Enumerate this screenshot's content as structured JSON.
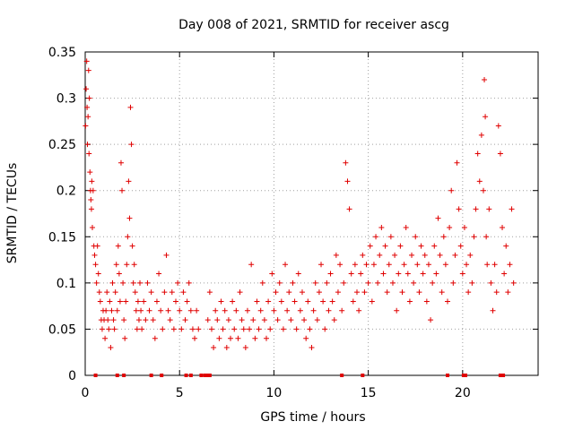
{
  "chart_data": {
    "type": "scatter",
    "title": "Day 008 of 2021, SRMTID for receiver ascg",
    "xlabel": "GPS time / hours",
    "ylabel": "SRMTID / TECUs",
    "xlim": [
      0,
      24
    ],
    "ylim": [
      0,
      0.35
    ],
    "xticks": [
      0,
      5,
      10,
      15,
      20
    ],
    "xtick_labels": [
      "0",
      "5",
      "10",
      "15",
      "20"
    ],
    "yticks": [
      0,
      0.05,
      0.1,
      0.15,
      0.2,
      0.25,
      0.3,
      0.35
    ],
    "ytick_labels": [
      "0",
      "0.05",
      "0.1",
      "0.15",
      "0.2",
      "0.25",
      "0.3",
      "0.35"
    ],
    "grid": true,
    "marker": "plus",
    "color": "#e00000",
    "series": [
      {
        "name": "SRMTID",
        "points": [
          [
            0.02,
            0.27
          ],
          [
            0.05,
            0.31
          ],
          [
            0.08,
            0.34
          ],
          [
            0.1,
            0.29
          ],
          [
            0.12,
            0.25
          ],
          [
            0.15,
            0.28
          ],
          [
            0.18,
            0.33
          ],
          [
            0.2,
            0.24
          ],
          [
            0.22,
            0.3
          ],
          [
            0.25,
            0.22
          ],
          [
            0.28,
            0.2
          ],
          [
            0.3,
            0.19
          ],
          [
            0.33,
            0.18
          ],
          [
            0.35,
            0.21
          ],
          [
            0.38,
            0.16
          ],
          [
            0.42,
            0.2
          ],
          [
            0.46,
            0.14
          ],
          [
            0.5,
            0.13
          ],
          [
            0.55,
            0.12
          ],
          [
            0.6,
            0.1
          ],
          [
            0.65,
            0.14
          ],
          [
            0.7,
            0.11
          ],
          [
            0.75,
            0.09
          ],
          [
            0.8,
            0.08
          ],
          [
            0.85,
            0.06
          ],
          [
            0.9,
            0.05
          ],
          [
            0.95,
            0.07
          ],
          [
            1.0,
            0.06
          ],
          [
            1.05,
            0.04
          ],
          [
            1.1,
            0.07
          ],
          [
            1.15,
            0.09
          ],
          [
            1.2,
            0.06
          ],
          [
            1.25,
            0.05
          ],
          [
            1.3,
            0.08
          ],
          [
            1.35,
            0.03
          ],
          [
            1.4,
            0.07
          ],
          [
            1.45,
            0.1
          ],
          [
            1.5,
            0.06
          ],
          [
            1.55,
            0.05
          ],
          [
            1.6,
            0.09
          ],
          [
            1.65,
            0.12
          ],
          [
            1.7,
            0.07
          ],
          [
            1.75,
            0.14
          ],
          [
            1.8,
            0.11
          ],
          [
            1.85,
            0.08
          ],
          [
            1.9,
            0.23
          ],
          [
            1.95,
            0.2
          ],
          [
            2.0,
            0.1
          ],
          [
            2.05,
            0.06
          ],
          [
            2.1,
            0.04
          ],
          [
            2.15,
            0.08
          ],
          [
            2.2,
            0.12
          ],
          [
            2.25,
            0.15
          ],
          [
            2.3,
            0.21
          ],
          [
            2.35,
            0.17
          ],
          [
            2.4,
            0.29
          ],
          [
            2.45,
            0.25
          ],
          [
            2.5,
            0.14
          ],
          [
            2.55,
            0.1
          ],
          [
            2.6,
            0.12
          ],
          [
            2.65,
            0.09
          ],
          [
            2.7,
            0.07
          ],
          [
            2.75,
            0.05
          ],
          [
            2.8,
            0.08
          ],
          [
            2.85,
            0.06
          ],
          [
            2.9,
            0.1
          ],
          [
            2.95,
            0.07
          ],
          [
            3.0,
            0.05
          ],
          [
            3.1,
            0.08
          ],
          [
            3.2,
            0.06
          ],
          [
            3.3,
            0.1
          ],
          [
            3.4,
            0.07
          ],
          [
            3.5,
            0.09
          ],
          [
            3.6,
            0.06
          ],
          [
            3.7,
            0.04
          ],
          [
            3.8,
            0.08
          ],
          [
            3.9,
            0.11
          ],
          [
            4.0,
            0.07
          ],
          [
            4.1,
            0.05
          ],
          [
            4.2,
            0.09
          ],
          [
            4.3,
            0.13
          ],
          [
            4.4,
            0.07
          ],
          [
            4.5,
            0.06
          ],
          [
            4.6,
            0.09
          ],
          [
            4.7,
            0.05
          ],
          [
            4.8,
            0.08
          ],
          [
            4.9,
            0.1
          ],
          [
            5.0,
            0.07
          ],
          [
            5.1,
            0.05
          ],
          [
            5.2,
            0.09
          ],
          [
            5.3,
            0.06
          ],
          [
            5.4,
            0.08
          ],
          [
            5.5,
            0.1
          ],
          [
            5.6,
            0.07
          ],
          [
            5.7,
            0.05
          ],
          [
            5.8,
            0.04
          ],
          [
            5.9,
            0.07
          ],
          [
            6.0,
            0.05
          ],
          [
            6.5,
            0.06
          ],
          [
            6.6,
            0.09
          ],
          [
            6.7,
            0.05
          ],
          [
            6.8,
            0.03
          ],
          [
            6.9,
            0.07
          ],
          [
            7.0,
            0.06
          ],
          [
            7.1,
            0.04
          ],
          [
            7.2,
            0.08
          ],
          [
            7.3,
            0.05
          ],
          [
            7.4,
            0.07
          ],
          [
            7.5,
            0.03
          ],
          [
            7.6,
            0.06
          ],
          [
            7.7,
            0.04
          ],
          [
            7.8,
            0.08
          ],
          [
            7.9,
            0.05
          ],
          [
            8.0,
            0.07
          ],
          [
            8.1,
            0.04
          ],
          [
            8.2,
            0.09
          ],
          [
            8.3,
            0.06
          ],
          [
            8.4,
            0.05
          ],
          [
            8.5,
            0.03
          ],
          [
            8.6,
            0.07
          ],
          [
            8.7,
            0.05
          ],
          [
            8.8,
            0.12
          ],
          [
            8.9,
            0.06
          ],
          [
            9.0,
            0.04
          ],
          [
            9.1,
            0.08
          ],
          [
            9.2,
            0.05
          ],
          [
            9.3,
            0.07
          ],
          [
            9.4,
            0.1
          ],
          [
            9.5,
            0.06
          ],
          [
            9.6,
            0.04
          ],
          [
            9.7,
            0.08
          ],
          [
            9.8,
            0.05
          ],
          [
            9.9,
            0.11
          ],
          [
            10.0,
            0.07
          ],
          [
            10.1,
            0.09
          ],
          [
            10.2,
            0.06
          ],
          [
            10.3,
            0.1
          ],
          [
            10.4,
            0.08
          ],
          [
            10.5,
            0.05
          ],
          [
            10.6,
            0.12
          ],
          [
            10.7,
            0.07
          ],
          [
            10.8,
            0.09
          ],
          [
            10.9,
            0.06
          ],
          [
            11.0,
            0.1
          ],
          [
            11.1,
            0.08
          ],
          [
            11.2,
            0.05
          ],
          [
            11.3,
            0.11
          ],
          [
            11.4,
            0.07
          ],
          [
            11.5,
            0.09
          ],
          [
            11.6,
            0.06
          ],
          [
            11.7,
            0.04
          ],
          [
            11.8,
            0.08
          ],
          [
            11.9,
            0.05
          ],
          [
            12.0,
            0.03
          ],
          [
            12.1,
            0.07
          ],
          [
            12.2,
            0.1
          ],
          [
            12.3,
            0.06
          ],
          [
            12.4,
            0.09
          ],
          [
            12.5,
            0.12
          ],
          [
            12.6,
            0.08
          ],
          [
            12.7,
            0.05
          ],
          [
            12.8,
            0.1
          ],
          [
            12.9,
            0.07
          ],
          [
            13.0,
            0.11
          ],
          [
            13.1,
            0.08
          ],
          [
            13.2,
            0.06
          ],
          [
            13.3,
            0.13
          ],
          [
            13.4,
            0.09
          ],
          [
            13.5,
            0.12
          ],
          [
            13.6,
            0.07
          ],
          [
            13.7,
            0.1
          ],
          [
            13.8,
            0.23
          ],
          [
            13.9,
            0.21
          ],
          [
            14.0,
            0.18
          ],
          [
            14.1,
            0.11
          ],
          [
            14.2,
            0.08
          ],
          [
            14.3,
            0.12
          ],
          [
            14.4,
            0.09
          ],
          [
            14.5,
            0.07
          ],
          [
            14.6,
            0.11
          ],
          [
            14.7,
            0.13
          ],
          [
            14.8,
            0.09
          ],
          [
            14.9,
            0.12
          ],
          [
            15.0,
            0.1
          ],
          [
            15.1,
            0.14
          ],
          [
            15.2,
            0.08
          ],
          [
            15.3,
            0.12
          ],
          [
            15.4,
            0.15
          ],
          [
            15.5,
            0.1
          ],
          [
            15.6,
            0.13
          ],
          [
            15.7,
            0.16
          ],
          [
            15.8,
            0.11
          ],
          [
            15.9,
            0.14
          ],
          [
            16.0,
            0.09
          ],
          [
            16.1,
            0.12
          ],
          [
            16.2,
            0.15
          ],
          [
            16.3,
            0.1
          ],
          [
            16.4,
            0.13
          ],
          [
            16.5,
            0.07
          ],
          [
            16.6,
            0.11
          ],
          [
            16.7,
            0.14
          ],
          [
            16.8,
            0.09
          ],
          [
            16.9,
            0.12
          ],
          [
            17.0,
            0.16
          ],
          [
            17.1,
            0.11
          ],
          [
            17.2,
            0.08
          ],
          [
            17.3,
            0.13
          ],
          [
            17.4,
            0.1
          ],
          [
            17.5,
            0.15
          ],
          [
            17.6,
            0.12
          ],
          [
            17.7,
            0.09
          ],
          [
            17.8,
            0.14
          ],
          [
            17.9,
            0.11
          ],
          [
            18.0,
            0.13
          ],
          [
            18.1,
            0.08
          ],
          [
            18.2,
            0.12
          ],
          [
            18.3,
            0.06
          ],
          [
            18.4,
            0.1
          ],
          [
            18.5,
            0.14
          ],
          [
            18.6,
            0.11
          ],
          [
            18.7,
            0.17
          ],
          [
            18.8,
            0.13
          ],
          [
            18.9,
            0.09
          ],
          [
            19.0,
            0.15
          ],
          [
            19.1,
            0.12
          ],
          [
            19.2,
            0.08
          ],
          [
            19.3,
            0.16
          ],
          [
            19.4,
            0.2
          ],
          [
            19.5,
            0.1
          ],
          [
            19.6,
            0.13
          ],
          [
            19.7,
            0.23
          ],
          [
            19.8,
            0.18
          ],
          [
            19.9,
            0.14
          ],
          [
            20.0,
            0.11
          ],
          [
            20.1,
            0.16
          ],
          [
            20.2,
            0.12
          ],
          [
            20.3,
            0.09
          ],
          [
            20.4,
            0.13
          ],
          [
            20.5,
            0.1
          ],
          [
            20.6,
            0.15
          ],
          [
            20.7,
            0.18
          ],
          [
            20.8,
            0.24
          ],
          [
            20.9,
            0.21
          ],
          [
            21.0,
            0.26
          ],
          [
            21.1,
            0.2
          ],
          [
            21.15,
            0.32
          ],
          [
            21.2,
            0.28
          ],
          [
            21.25,
            0.15
          ],
          [
            21.3,
            0.12
          ],
          [
            21.4,
            0.18
          ],
          [
            21.5,
            0.1
          ],
          [
            21.6,
            0.07
          ],
          [
            21.7,
            0.12
          ],
          [
            21.8,
            0.09
          ],
          [
            21.9,
            0.27
          ],
          [
            22.0,
            0.24
          ],
          [
            22.1,
            0.16
          ],
          [
            22.2,
            0.11
          ],
          [
            22.3,
            0.14
          ],
          [
            22.4,
            0.09
          ],
          [
            22.5,
            0.12
          ],
          [
            22.6,
            0.18
          ],
          [
            22.7,
            0.1
          ]
        ]
      }
    ],
    "zero_markers": [
      0.55,
      1.7,
      2.05,
      3.5,
      4.05,
      5.35,
      5.6,
      6.15,
      6.35,
      6.5,
      6.6,
      13.6,
      14.7,
      19.2,
      20.05,
      20.15,
      22.0,
      22.15
    ]
  }
}
